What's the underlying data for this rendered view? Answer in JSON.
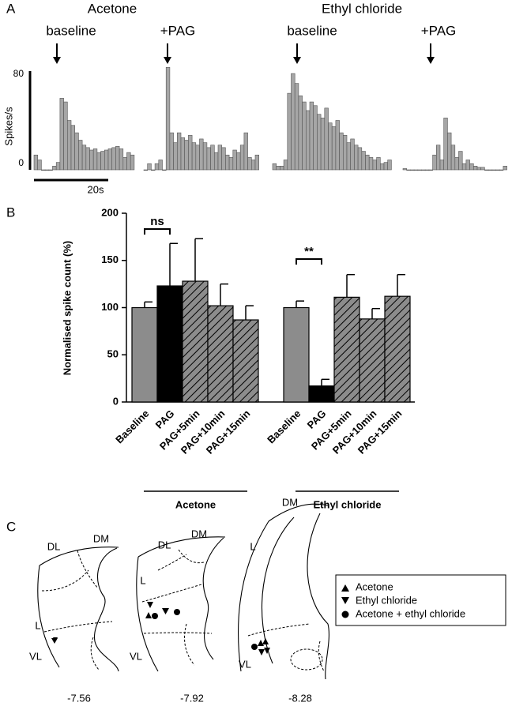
{
  "panel_labels": [
    "A",
    "B",
    "C"
  ],
  "panel_a": {
    "groups": [
      "Acetone",
      "Ethyl chloride"
    ]
  },
  "chart_data": [
    {
      "type": "histogram",
      "title": "baseline",
      "ylabel": "Spikes/s",
      "scale_bar_label": "20s",
      "color": "#a6a6a6",
      "ylim": [
        0,
        80
      ],
      "yticks": [
        0,
        80
      ],
      "bins": [
        0,
        1,
        2,
        3,
        4,
        5,
        6,
        7,
        8,
        9,
        10,
        11,
        12,
        13,
        14,
        15,
        16,
        17,
        18,
        19,
        20,
        21,
        22,
        23,
        24,
        25,
        26,
        27
      ],
      "values": [
        12,
        8,
        0,
        0,
        0,
        3,
        6,
        58,
        55,
        40,
        36,
        30,
        24,
        20,
        18,
        16,
        17,
        14,
        15,
        16,
        17,
        18,
        19,
        17,
        10,
        14,
        12
      ]
    },
    {
      "type": "histogram",
      "title": "+PAG",
      "color": "#a6a6a6",
      "ylim": [
        0,
        80
      ],
      "bins": [
        0,
        1,
        2,
        3,
        4,
        5,
        6,
        7,
        8,
        9,
        10,
        11,
        12,
        13,
        14,
        15,
        16,
        17,
        18,
        19,
        20,
        21,
        22,
        23,
        24,
        25,
        26,
        27,
        28,
        29,
        30,
        31
      ],
      "values": [
        0,
        5,
        0,
        5,
        8,
        0,
        83,
        30,
        22,
        30,
        26,
        24,
        28,
        22,
        20,
        25,
        22,
        18,
        20,
        14,
        20,
        18,
        12,
        10,
        16,
        14,
        20,
        30,
        10,
        8,
        12
      ]
    },
    {
      "type": "histogram",
      "title": "baseline",
      "color": "#a6a6a6",
      "ylim": [
        0,
        80
      ],
      "bins": [
        0,
        1,
        2,
        3,
        4,
        5,
        6,
        7,
        8,
        9,
        10,
        11,
        12,
        13,
        14,
        15,
        16,
        17,
        18,
        19,
        20,
        21,
        22,
        23,
        24,
        25,
        26,
        27,
        28,
        29,
        30,
        31,
        32
      ],
      "values": [
        5,
        3,
        3,
        8,
        62,
        78,
        70,
        60,
        55,
        48,
        55,
        52,
        45,
        42,
        50,
        38,
        35,
        40,
        30,
        28,
        22,
        25,
        20,
        18,
        15,
        12,
        10,
        8,
        10,
        5,
        6,
        8
      ]
    },
    {
      "type": "histogram",
      "title": "+PAG",
      "color": "#a6a6a6",
      "ylim": [
        0,
        80
      ],
      "bins": [
        0,
        1,
        2,
        3,
        4,
        5,
        6,
        7,
        8,
        9,
        10,
        11,
        12,
        13,
        14,
        15,
        16,
        17,
        18,
        19,
        20,
        21,
        22,
        23,
        24,
        25,
        26,
        27,
        28
      ],
      "values": [
        1,
        0,
        0,
        0,
        0,
        0,
        0,
        0,
        12,
        20,
        8,
        42,
        30,
        20,
        10,
        15,
        5,
        8,
        5,
        3,
        2,
        2,
        0,
        0,
        0,
        0,
        0,
        3
      ]
    },
    {
      "type": "bar",
      "ylabel": "Normalised spike count (%)",
      "ylim": [
        0,
        200
      ],
      "yticks": [
        0,
        50,
        100,
        150,
        200
      ],
      "categories": [
        "Baseline",
        "PAG",
        "PAG+5min",
        "PAG+10min",
        "PAG+15min"
      ],
      "colors": [
        "#8c8c8c",
        "#000000",
        "#8c8c8c",
        "#8c8c8c",
        "#8c8c8c"
      ],
      "hatched": [
        false,
        false,
        true,
        true,
        true
      ],
      "series": [
        {
          "name": "Acetone",
          "values": [
            100,
            123,
            128,
            102,
            87
          ],
          "errors": [
            6,
            45,
            45,
            23,
            15
          ],
          "significance": "ns"
        },
        {
          "name": "Ethyl chloride",
          "values": [
            100,
            17,
            111,
            88,
            112
          ],
          "errors": [
            7,
            7,
            24,
            11,
            23
          ],
          "significance": "**"
        }
      ]
    }
  ],
  "diagram": {
    "legend": [
      "Acetone",
      "Ethyl chloride",
      "Acetone + ethyl chloride"
    ],
    "sections": [
      {
        "labels": [
          "DL",
          "DM",
          "L",
          "VL"
        ],
        "level": "-7.56"
      },
      {
        "labels": [
          "DL",
          "DM",
          "L",
          "VL"
        ],
        "level": "-7.92"
      },
      {
        "labels": [
          "DM",
          "L",
          "VL"
        ],
        "level": "-8.28"
      }
    ]
  }
}
